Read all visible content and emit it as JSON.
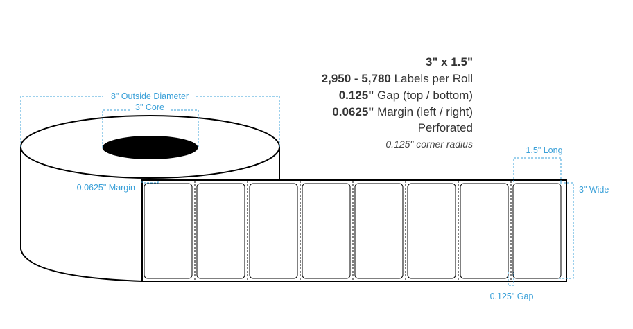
{
  "specs": {
    "size": "3\" x 1.5\"",
    "count_bold": "2,950 - 5,780",
    "count_rest": " Labels per Roll",
    "gap_bold": "0.125\"",
    "gap_rest": " Gap (top / bottom)",
    "margin_bold": "0.0625\"",
    "margin_rest": " Margin (left / right)",
    "perforation": "Perforated",
    "corner_radius": "0.125\" corner radius"
  },
  "dimensions": {
    "outside_diameter": "8\" Outside Diameter",
    "core": "3\" Core",
    "margin": "0.0625\" Margin",
    "label_length": "1.5\" Long",
    "label_width": "3\" Wide",
    "gap": "0.125\" Gap"
  },
  "label_count_drawn": 8,
  "colors": {
    "dimension": "#3aa0d8",
    "text": "#333333"
  }
}
